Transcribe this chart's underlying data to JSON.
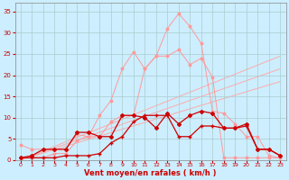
{
  "bg_color": "#cceeff",
  "grid_color": "#aacccc",
  "xlabel": "Vent moyen/en rafales ( km/h )",
  "xlabel_color": "#cc0000",
  "ylabel_ticks": [
    0,
    5,
    10,
    15,
    20,
    25,
    30,
    35
  ],
  "xlim": [
    -0.5,
    23.5
  ],
  "ylim": [
    0,
    37
  ],
  "x": [
    0,
    1,
    2,
    3,
    4,
    5,
    6,
    7,
    8,
    9,
    10,
    11,
    12,
    13,
    14,
    15,
    16,
    17,
    18,
    19,
    20,
    21,
    22,
    23
  ],
  "line_pink1_y": [
    3.5,
    2.5,
    2.5,
    2.5,
    2.5,
    6.0,
    5.5,
    5.5,
    9.0,
    10.5,
    10.5,
    21.5,
    24.5,
    31.0,
    34.5,
    31.5,
    27.5,
    11.5,
    11.0,
    8.5,
    5.5,
    5.5,
    1.0,
    0.5
  ],
  "line_pink1_color": "#ff9999",
  "line_pink2_y": [
    0.5,
    0.5,
    0.5,
    1.5,
    1.5,
    4.5,
    5.5,
    10.5,
    14.0,
    21.5,
    25.5,
    21.5,
    24.5,
    24.5,
    26.0,
    22.5,
    24.0,
    19.5,
    0.5,
    0.5,
    0.5,
    0.5,
    0.5,
    0.5
  ],
  "line_pink2_color": "#ff9999",
  "straight1": [
    0,
    0,
    23,
    24.5
  ],
  "straight2": [
    0,
    0,
    23,
    21.5
  ],
  "straight3": [
    0,
    0,
    23,
    18.5
  ],
  "straight_color": "#ffaaaa",
  "line_dark1_y": [
    0.5,
    1.0,
    2.5,
    2.5,
    2.5,
    6.5,
    6.5,
    5.5,
    5.5,
    10.5,
    10.5,
    10.0,
    7.5,
    11.0,
    8.5,
    10.5,
    11.5,
    11.0,
    7.5,
    7.5,
    8.5,
    2.5,
    2.5,
    1.0
  ],
  "line_dark1_color": "#cc0000",
  "line_dark2_y": [
    0.5,
    0.5,
    0.5,
    0.5,
    1.0,
    1.0,
    1.0,
    1.5,
    4.0,
    5.5,
    9.0,
    10.5,
    10.5,
    10.5,
    5.5,
    5.5,
    8.0,
    8.0,
    7.5,
    7.5,
    8.0,
    2.5,
    2.5,
    1.0
  ],
  "line_dark2_color": "#cc0000",
  "xtick_color": "#cc0000",
  "ytick_color": "#cc0000",
  "spine_color": "#888888",
  "xtick_labels": [
    "0",
    "1",
    "2",
    "3",
    "4",
    "5",
    "6",
    "7",
    "8",
    "9",
    "10",
    "11",
    "12",
    "13",
    "14",
    "15",
    "16",
    "17",
    "18",
    "19",
    "20",
    "21",
    "22",
    "23"
  ]
}
